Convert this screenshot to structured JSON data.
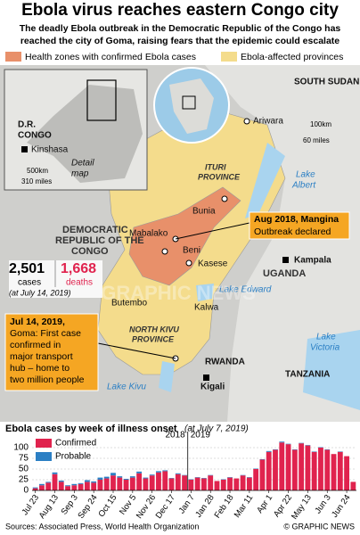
{
  "header": {
    "title": "Ebola virus reaches eastern Congo city",
    "subtitle": [
      "The deadly Ebola outbreak in the Democratic Republic of the Congo has",
      "reached the city of Goma, raising fears that the epidemic could escalate"
    ]
  },
  "legend": [
    "Health zones with confirmed Ebola cases",
    "Ebola-affected provinces"
  ],
  "inset": {
    "country": [
      "D.R.",
      "CONGO"
    ],
    "capital": "Kinshasa",
    "note": [
      "Detail",
      "map"
    ],
    "scale": [
      "500km",
      "310 miles"
    ]
  },
  "map": {
    "places": [
      "SOUTH SUDAN",
      "Ariwara",
      "Bunia",
      "Mabalako",
      "Beni",
      "Kasese",
      "UGANDA",
      "Kampala",
      "Butembo",
      "Kalwa",
      "RWANDA",
      "Kigali",
      "TANZANIA"
    ],
    "provinces": [
      [
        "ITURI",
        "PROVINCE"
      ],
      [
        "NORTH KIVU",
        "PROVINCE"
      ]
    ],
    "lakes": [
      [
        "Lake",
        "Albert"
      ],
      "Lake Edward",
      [
        "Lake",
        "Victoria"
      ],
      "Lake Kivu"
    ],
    "country": [
      "DEMOCRATIC",
      "REPUBLIC OF THE",
      "CONGO"
    ],
    "scale": [
      "100km",
      "60 miles"
    ],
    "watermark": "GRAPHIC NEWS"
  },
  "stats": {
    "cases": "2,501",
    "cases_label": "cases",
    "deaths": "1,668",
    "deaths_label": "deaths",
    "date": "(at July 14, 2019)"
  },
  "callouts": [
    {
      "title": "Aug 2018, Mangina",
      "text": "Outbreak declared"
    },
    {
      "title": "Jul 14, 2019,",
      "lines": [
        "Goma: First case",
        "confirmed in",
        "major transport",
        "hub – home to",
        "two million people"
      ]
    }
  ],
  "chart_data": {
    "type": "stacked_bar",
    "title": "Ebola cases by week of illness onset",
    "subtitle": "(at July 7, 2019)",
    "categories": [
      "Jul 23",
      null,
      null,
      "Aug 13",
      null,
      null,
      "Sep 3",
      null,
      null,
      "Sep 24",
      null,
      null,
      "Oct 15",
      null,
      null,
      "Nov 5",
      null,
      null,
      "Nov 26",
      null,
      null,
      "Dec 17",
      null,
      null,
      "Jan 7",
      null,
      null,
      "Jan 28",
      null,
      null,
      "Feb 18",
      null,
      null,
      "Mar 11",
      null,
      null,
      "Apr 1",
      null,
      null,
      "Apr 22",
      null,
      null,
      "May 13",
      null,
      null,
      "Jun 3",
      null,
      null,
      "Jun 24",
      null
    ],
    "series": [
      {
        "name": "Confirmed",
        "color": "#e0234e",
        "values": [
          5,
          12,
          18,
          38,
          20,
          10,
          12,
          15,
          20,
          18,
          25,
          28,
          35,
          30,
          25,
          30,
          40,
          28,
          35,
          42,
          45,
          28,
          38,
          35,
          25,
          30,
          28,
          35,
          22,
          25,
          30,
          28,
          35,
          30,
          50,
          72,
          90,
          95,
          112,
          108,
          95,
          110,
          105,
          90,
          100,
          95,
          85,
          90,
          80,
          20
        ]
      },
      {
        "name": "Probable",
        "color": "#2b7fc4",
        "values": [
          2,
          3,
          2,
          4,
          3,
          2,
          3,
          2,
          4,
          3,
          5,
          4,
          6,
          3,
          2,
          3,
          4,
          2,
          2,
          3,
          2,
          1,
          2,
          1,
          1,
          1,
          1,
          1,
          0,
          1,
          1,
          0,
          1,
          1,
          1,
          1,
          2,
          1,
          2,
          1,
          1,
          1,
          1,
          1,
          1,
          1,
          0,
          1,
          0,
          0
        ]
      }
    ],
    "year_labels": [
      "2018",
      "2019"
    ],
    "ylim": [
      0,
      125
    ],
    "yticks": [
      0,
      25,
      50,
      75,
      100
    ],
    "grid": true
  },
  "footer": {
    "sources": "Sources: Associated Press, World Health Organization",
    "credit": "© GRAPHIC NEWS"
  }
}
